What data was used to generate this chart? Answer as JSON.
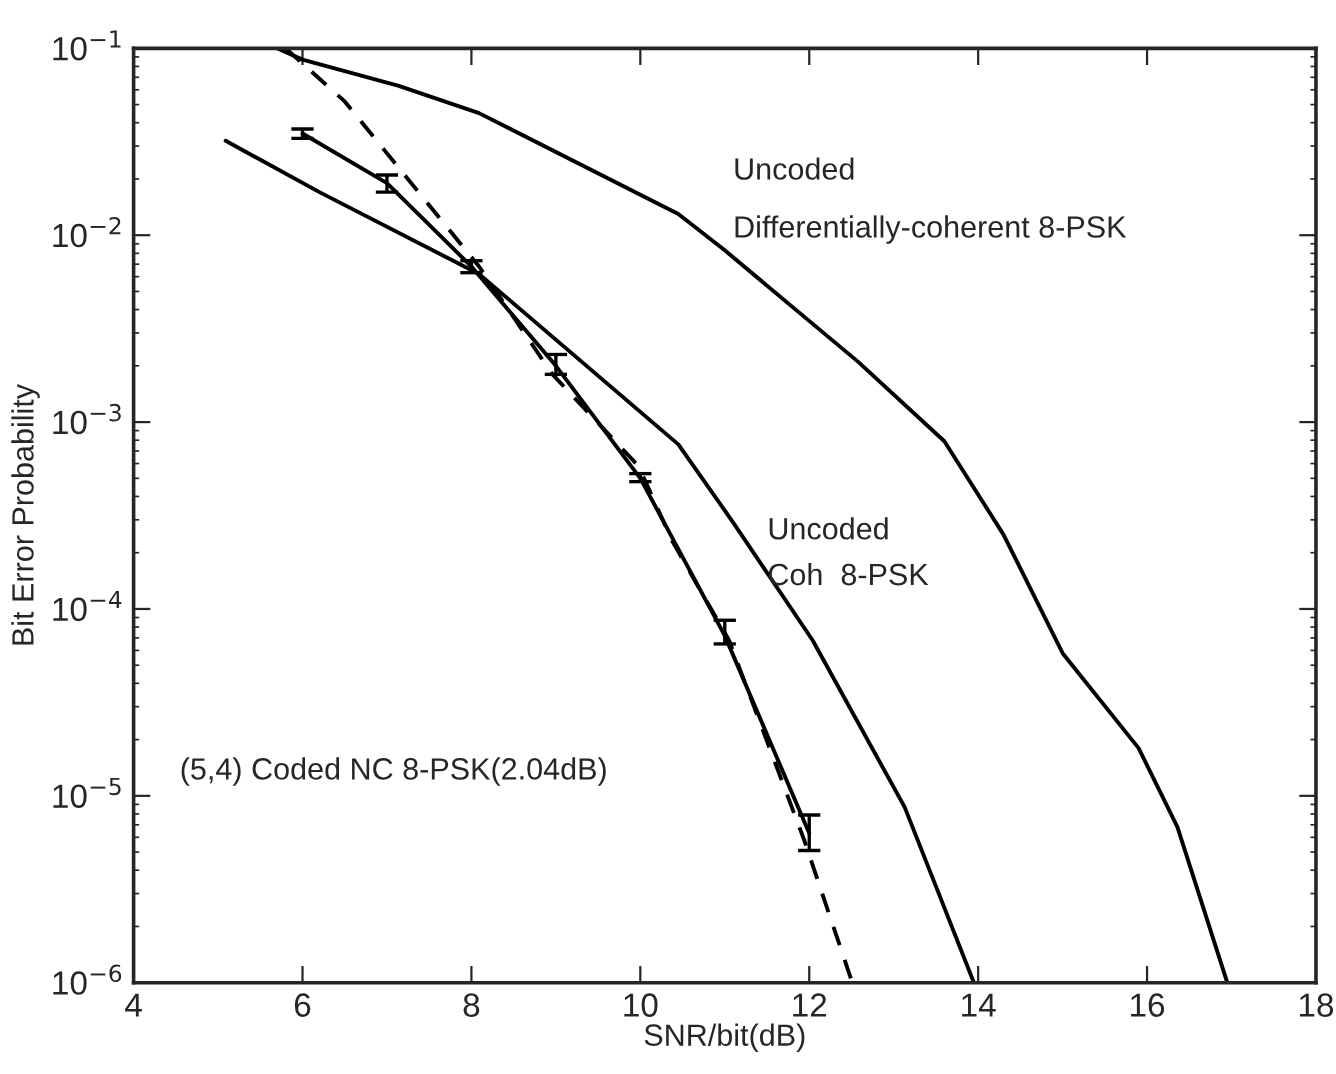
{
  "chart_data": {
    "type": "line",
    "xlabel": "SNR/bit(dB)",
    "ylabel": "Bit Error Probability",
    "log": "y",
    "xlim": [
      4,
      18
    ],
    "ylim": [
      1e-06,
      0.1
    ],
    "xticks": [
      4,
      6,
      8,
      10,
      12,
      14,
      16,
      18
    ],
    "yticks": [
      {
        "value": 1e-06,
        "label": "10$^{−6}$"
      },
      {
        "value": 1e-05,
        "label": "10$^{−5}$"
      },
      {
        "value": 0.0001,
        "label": "10$^{−4}$"
      },
      {
        "value": 0.001,
        "label": "10$^{−3}$"
      },
      {
        "value": 0.01,
        "label": "10$^{−2}$"
      },
      {
        "value": 0.1,
        "label": "10$^{−1}$"
      }
    ],
    "grid": false,
    "legend": false,
    "series": [
      {
        "color": "#000000",
        "line_style": "solid",
        "x": [
          5.7,
          6.0,
          7.14,
          8.09,
          10.45,
          11.0,
          12.58,
          13.6,
          14.3,
          15.0,
          15.9,
          16.36,
          16.95
        ],
        "values": [
          0.1,
          0.087,
          0.063,
          0.045,
          0.013,
          0.0083,
          0.0021,
          0.00079,
          0.00025,
          5.8e-05,
          1.8e-05,
          6.8e-06,
          1e-06
        ]
      },
      {
        "color": "#000000",
        "line_style": "solid",
        "x": [
          5.09,
          6.2,
          8.09,
          10.45,
          11.1,
          12.04,
          13.13,
          13.95
        ],
        "values": [
          0.032,
          0.017,
          0.0062,
          0.00076,
          0.00029,
          6.8e-05,
          8.7e-06,
          1e-06
        ]
      },
      {
        "color": "#000000",
        "line_style": "dashed",
        "x": [
          5.8,
          6.5,
          8.09,
          8.96,
          9.98,
          10.38,
          11.05,
          11.94,
          12.51
        ],
        "values": [
          0.1,
          0.052,
          0.0068,
          0.0018,
          0.00058,
          0.00023,
          6.8e-05,
          5.8e-06,
          1e-06
        ]
      },
      {
        "color": "#000000",
        "line_style": "solid",
        "x": [
          6,
          7,
          8,
          9,
          10,
          11,
          12
        ],
        "values": [
          0.035,
          0.019,
          0.0068,
          0.002,
          0.0005,
          7.2e-05,
          6.3e-06
        ],
        "errors": [
          [
            0.033,
            0.037
          ],
          [
            0.017,
            0.021
          ],
          [
            0.0063,
            0.0073
          ],
          [
            0.0018,
            0.0023
          ],
          [
            0.00048,
            0.00053
          ],
          [
            6.5e-05,
            8.7e-05
          ],
          [
            5.1e-06,
            7.9e-06
          ]
        ]
      }
    ],
    "annotations": [
      "Uncoded",
      "Differentially-coherent 8-PSK",
      "Uncoded",
      "Coh  8-PSK",
      "(5,4) Coded NC 8-PSK(2.04dB)"
    ]
  }
}
